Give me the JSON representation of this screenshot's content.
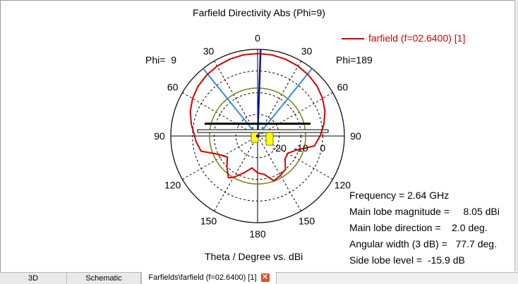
{
  "chart_data": {
    "type": "polar",
    "title": "Farfield Directivity Abs (Phi=9)",
    "legend": {
      "label": "farfield (f=02.6400) [1]",
      "color": "#d40000",
      "placement": "top-right"
    },
    "phi_left_label": "Phi=  9",
    "phi_right_label": "Phi=189",
    "x_caption": "Theta / Degree vs. dBi",
    "angle_labels": [
      {
        "deg": 0,
        "text": "0"
      },
      {
        "deg": 30,
        "text": "30"
      },
      {
        "deg": -30,
        "text": "30"
      },
      {
        "deg": 60,
        "text": "60"
      },
      {
        "deg": -60,
        "text": "60"
      },
      {
        "deg": 90,
        "text": "90"
      },
      {
        "deg": -90,
        "text": "90"
      },
      {
        "deg": 120,
        "text": "120"
      },
      {
        "deg": -120,
        "text": "120"
      },
      {
        "deg": 150,
        "text": "150"
      },
      {
        "deg": -150,
        "text": "150"
      },
      {
        "deg": 180,
        "text": "180"
      }
    ],
    "radial_axis": {
      "min_dbi": -30,
      "max_dbi": 10,
      "tick_labels": [
        "-20",
        "-10",
        "0"
      ],
      "tick_values": [
        -20,
        -10,
        0
      ]
    },
    "grid_rings_dbi": [
      -20,
      -10,
      0,
      10
    ],
    "series": [
      {
        "name": "farfield (f=02.6400) [1]",
        "color": "#d40000",
        "points": [
          [
            0,
            8.05
          ],
          [
            10,
            8.0
          ],
          [
            20,
            7.7
          ],
          [
            30,
            7.3
          ],
          [
            40,
            6.6
          ],
          [
            50,
            5.8
          ],
          [
            60,
            4.6
          ],
          [
            70,
            3.0
          ],
          [
            80,
            1.0
          ],
          [
            90,
            -1.2
          ],
          [
            100,
            -3.5
          ],
          [
            110,
            -11
          ],
          [
            120,
            -14
          ],
          [
            130,
            -13.5
          ],
          [
            140,
            -10
          ],
          [
            150,
            -9
          ],
          [
            160,
            -8
          ],
          [
            170,
            -12
          ],
          [
            180,
            -13
          ],
          [
            190,
            -15
          ],
          [
            200,
            -12
          ],
          [
            210,
            -8
          ],
          [
            215,
            -6.5
          ],
          [
            225,
            -10
          ],
          [
            235,
            -13
          ],
          [
            245,
            -10
          ],
          [
            255,
            -3
          ],
          [
            265,
            -1.5
          ],
          [
            270,
            -1.0
          ],
          [
            280,
            1.0
          ],
          [
            290,
            3.0
          ],
          [
            300,
            4.6
          ],
          [
            310,
            5.8
          ],
          [
            320,
            6.6
          ],
          [
            330,
            7.3
          ],
          [
            340,
            7.7
          ],
          [
            350,
            8.0
          ],
          [
            360,
            8.05
          ]
        ]
      }
    ],
    "main_lobe_direction_deg": 2.0,
    "beamwidth_lines_deg": [
      -38.85,
      38.85
    ],
    "side_lobe_level_ring_dbi": -7.85,
    "info": [
      {
        "label": "Frequency = 2.64 GHz"
      },
      {
        "label": "Main lobe magnitude =     8.05 dBi"
      },
      {
        "label": "Main lobe direction =    2.0 deg."
      },
      {
        "label": "Angular width (3 dB) =   77.7 deg."
      },
      {
        "label": "Side lobe level =  -15.9 dB"
      }
    ]
  },
  "tabs": [
    {
      "label": "3D"
    },
    {
      "label": "Schematic"
    },
    {
      "label": "Farfields\\farfield (f=02.6400) [1]"
    }
  ],
  "close_icon": "close-icon"
}
